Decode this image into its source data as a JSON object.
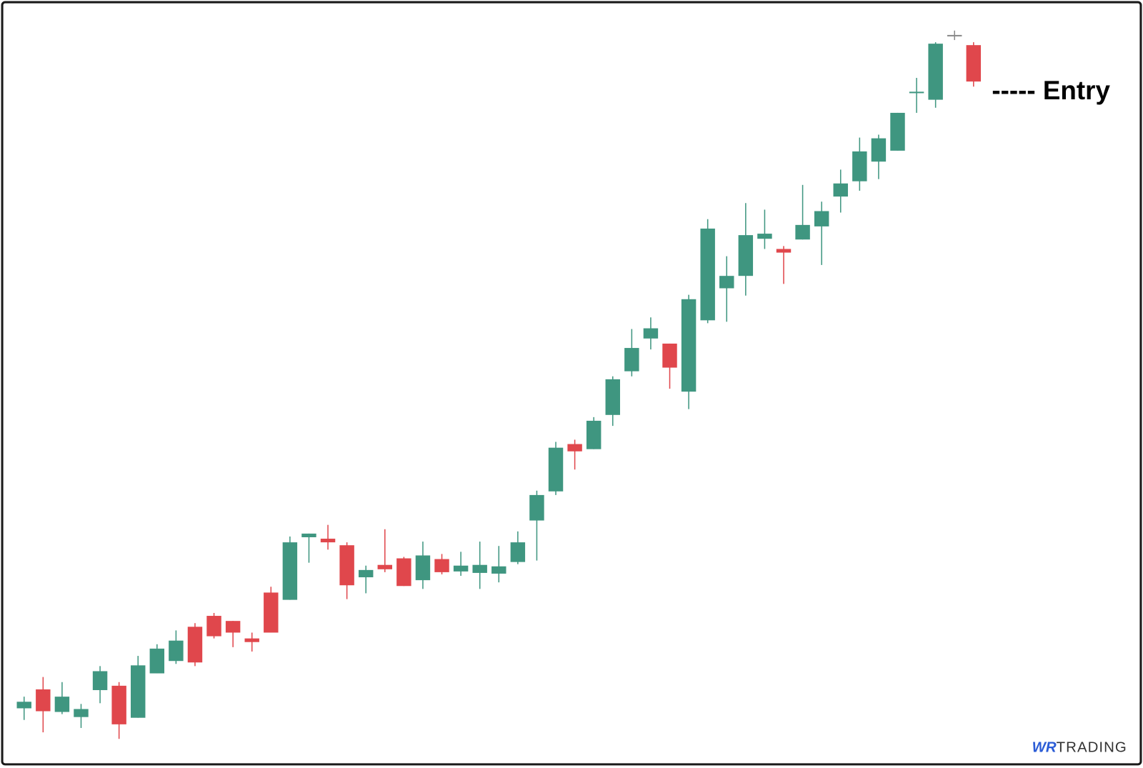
{
  "chart_data": {
    "type": "candlestick",
    "open": [
      82,
      108,
      77,
      70,
      107,
      113,
      69,
      130,
      147,
      194,
      209,
      202,
      178,
      241,
      231,
      317,
      315,
      306,
      262,
      279,
      288,
      258,
      287,
      270,
      268,
      267,
      283,
      340,
      380,
      445,
      438,
      485,
      545,
      590,
      583,
      517,
      615,
      659,
      676,
      727,
      713,
      726,
      744,
      785,
      806,
      833,
      848,
      927,
      918,
      1007,
      993
    ],
    "high": [
      98,
      125,
      118,
      88,
      140,
      118,
      154,
      170,
      189,
      199,
      213,
      202,
      186,
      249,
      318,
      322,
      334,
      310,
      278,
      328,
      290,
      311,
      294,
      297,
      311,
      305,
      325,
      381,
      448,
      451,
      482,
      538,
      603,
      619,
      583,
      650,
      754,
      703,
      776,
      767,
      717,
      801,
      778,
      822,
      866,
      870,
      900,
      948,
      997,
      1013,
      997
    ],
    "low": [
      66,
      49,
      74,
      55,
      89,
      40,
      69,
      130,
      143,
      140,
      178,
      166,
      160,
      186,
      231,
      282,
      300,
      232,
      240,
      269,
      250,
      246,
      266,
      264,
      246,
      255,
      280,
      285,
      375,
      410,
      438,
      470,
      538,
      575,
      521,
      493,
      611,
      613,
      649,
      713,
      665,
      726,
      691,
      763,
      793,
      809,
      848,
      900,
      907,
      1000,
      936
    ],
    "close": [
      91,
      78,
      98,
      81,
      133,
      60,
      141,
      164,
      175,
      145,
      181,
      186,
      173,
      186,
      310,
      322,
      310,
      251,
      272,
      273,
      250,
      292,
      269,
      278,
      279,
      277,
      310,
      375,
      440,
      435,
      477,
      534,
      577,
      604,
      550,
      644,
      741,
      676,
      732,
      734,
      708,
      746,
      765,
      803,
      847,
      865,
      900,
      929,
      995,
      1007,
      943
    ],
    "up_color": "#3f9680",
    "down_color": "#e0474c",
    "flat_color": "#8a8a8a",
    "ylim": [
      0,
      1055
    ],
    "annotations": [
      {
        "text": "----- Entry"
      }
    ]
  },
  "brand": {
    "mark": "WR",
    "name": "TRADING"
  }
}
